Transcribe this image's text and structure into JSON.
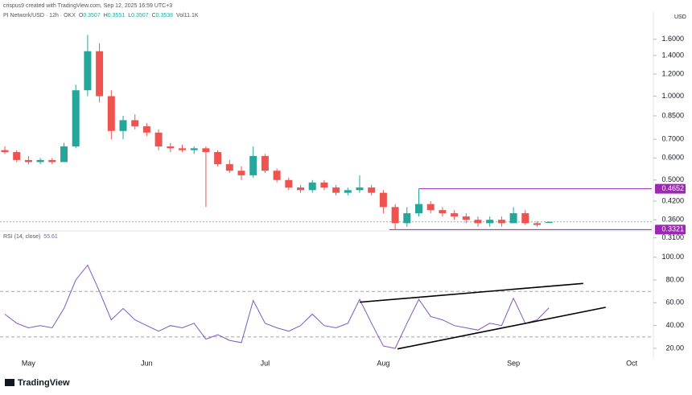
{
  "credit": "crispus9 created with TradingView.com, Sep 12, 2025 16:59 UTC+3",
  "brand": "TradingView",
  "chart_data": [
    {
      "type": "candlestick",
      "title": "PI Network/USD · 12h · OKX",
      "currency": "USD",
      "ohlc_labels": [
        "O",
        "H",
        "L",
        "C"
      ],
      "volume": "Vol11.1K",
      "log_scale": true,
      "up_color": "#26a69a",
      "down_color": "#ef5350",
      "categories": [
        null,
        null,
        "May",
        null,
        null,
        null,
        null,
        null,
        null,
        null,
        null,
        null,
        "Jun",
        null,
        null,
        null,
        null,
        null,
        null,
        null,
        null,
        null,
        "Jul",
        null,
        null,
        null,
        null,
        null,
        null,
        null,
        null,
        null,
        "Aug",
        null,
        null,
        null,
        null,
        null,
        null,
        null,
        null,
        null,
        null,
        "Sep",
        null,
        null,
        null,
        null,
        null,
        null,
        null,
        null,
        null,
        "Oct",
        null
      ],
      "open": [
        0.64,
        0.63,
        0.59,
        0.58,
        0.59,
        0.58,
        0.66,
        1.05,
        1.45,
        1.0,
        0.75,
        0.82,
        0.78,
        0.74,
        0.66,
        0.65,
        0.64,
        0.65,
        0.63,
        0.57,
        0.54,
        0.52,
        0.61,
        0.54,
        0.5,
        0.47,
        0.46,
        0.49,
        0.47,
        0.45,
        0.46,
        0.47,
        0.45,
        0.4,
        0.35,
        0.38,
        0.41,
        0.39,
        0.38,
        0.37,
        0.36,
        0.35,
        0.36,
        0.35,
        0.38,
        0.35,
        0.3507,
        null,
        null,
        null,
        null,
        null,
        null,
        null,
        null
      ],
      "high": [
        0.66,
        0.64,
        0.61,
        0.6,
        0.6,
        0.68,
        1.1,
        1.66,
        1.55,
        1.05,
        0.85,
        0.86,
        0.8,
        0.76,
        0.68,
        0.67,
        0.66,
        0.66,
        0.64,
        0.59,
        0.56,
        0.66,
        0.62,
        0.55,
        0.51,
        0.48,
        0.5,
        0.5,
        0.48,
        0.47,
        0.52,
        0.48,
        0.46,
        0.41,
        0.4,
        0.4652,
        0.42,
        0.4,
        0.39,
        0.38,
        0.37,
        0.37,
        0.37,
        0.4,
        0.39,
        0.355,
        0.3551,
        null,
        null,
        null,
        null,
        null,
        null,
        null,
        null
      ],
      "low": [
        0.62,
        0.58,
        0.57,
        0.57,
        0.57,
        0.58,
        0.65,
        1.0,
        0.95,
        0.7,
        0.7,
        0.76,
        0.72,
        0.64,
        0.63,
        0.63,
        0.62,
        0.4,
        0.56,
        0.53,
        0.5,
        0.51,
        0.53,
        0.49,
        0.46,
        0.45,
        0.45,
        0.46,
        0.44,
        0.44,
        0.45,
        0.44,
        0.38,
        0.3321,
        0.34,
        0.37,
        0.38,
        0.37,
        0.36,
        0.35,
        0.34,
        0.34,
        0.34,
        0.35,
        0.345,
        0.34,
        0.3507,
        null,
        null,
        null,
        null,
        null,
        null,
        null,
        null
      ],
      "close": [
        0.63,
        0.59,
        0.58,
        0.59,
        0.58,
        0.66,
        1.05,
        1.45,
        1.0,
        0.75,
        0.82,
        0.78,
        0.74,
        0.66,
        0.65,
        0.64,
        0.65,
        0.63,
        0.57,
        0.54,
        0.52,
        0.61,
        0.54,
        0.5,
        0.47,
        0.46,
        0.49,
        0.47,
        0.45,
        0.46,
        0.47,
        0.45,
        0.4,
        0.35,
        0.38,
        0.41,
        0.39,
        0.38,
        0.37,
        0.36,
        0.35,
        0.36,
        0.35,
        0.38,
        0.35,
        0.345,
        0.3538,
        null,
        null,
        null,
        null,
        null,
        null,
        null,
        null
      ],
      "ylim": [
        0.28,
        1.9
      ],
      "yticks": [
        {
          "value": 0.31,
          "label": "0.3100"
        },
        {
          "value": 0.36,
          "label": "0.3600"
        },
        {
          "value": 0.42,
          "label": "0.4200"
        },
        {
          "value": 0.5,
          "label": "0.5000"
        },
        {
          "value": 0.6,
          "label": "0.6000"
        },
        {
          "value": 0.7,
          "label": "0.7000"
        },
        {
          "value": 0.85,
          "label": "0.8500"
        },
        {
          "value": 1.0,
          "label": "1.0000"
        },
        {
          "value": 1.2,
          "label": "1.2000"
        },
        {
          "value": 1.4,
          "label": "1.4000"
        },
        {
          "value": 1.6,
          "label": "1.6000"
        }
      ],
      "levels": [
        {
          "value": 0.4652,
          "label": "0.4652",
          "start": 35,
          "color": "#9c27b0"
        },
        {
          "value": 0.3321,
          "label": "0.3321",
          "start": 32.5,
          "color": "#9c27b0"
        }
      ]
    },
    {
      "type": "line",
      "title": "RSI (14, close)",
      "color": "#7e57c2",
      "values": [
        50,
        42,
        38,
        40,
        38,
        55,
        80,
        93,
        70,
        45,
        55,
        45,
        40,
        35,
        40,
        38,
        42,
        28,
        32,
        27,
        25,
        62,
        42,
        38,
        35,
        40,
        50,
        40,
        38,
        42,
        63,
        42,
        22,
        20,
        42,
        63,
        48,
        45,
        40,
        38,
        36,
        42,
        40,
        64,
        42,
        45,
        55.61,
        null,
        null,
        null,
        null,
        null,
        null,
        null,
        null
      ],
      "ylim": [
        11.5,
        121
      ],
      "yticks": [
        {
          "value": 20,
          "label": "20.00"
        },
        {
          "value": 40,
          "label": "40.00"
        },
        {
          "value": 60,
          "label": "60.00"
        },
        {
          "value": 80,
          "label": "80.00"
        },
        {
          "value": 100,
          "label": "100.00"
        }
      ],
      "levels": [
        30,
        70
      ],
      "trendlines": [
        {
          "x": [
            30,
            48.9
          ],
          "y": [
            60.5,
            77
          ],
          "color": "#000000"
        },
        {
          "x": [
            33.2,
            50.8
          ],
          "y": [
            19.5,
            56
          ],
          "color": "#000000"
        }
      ]
    }
  ]
}
